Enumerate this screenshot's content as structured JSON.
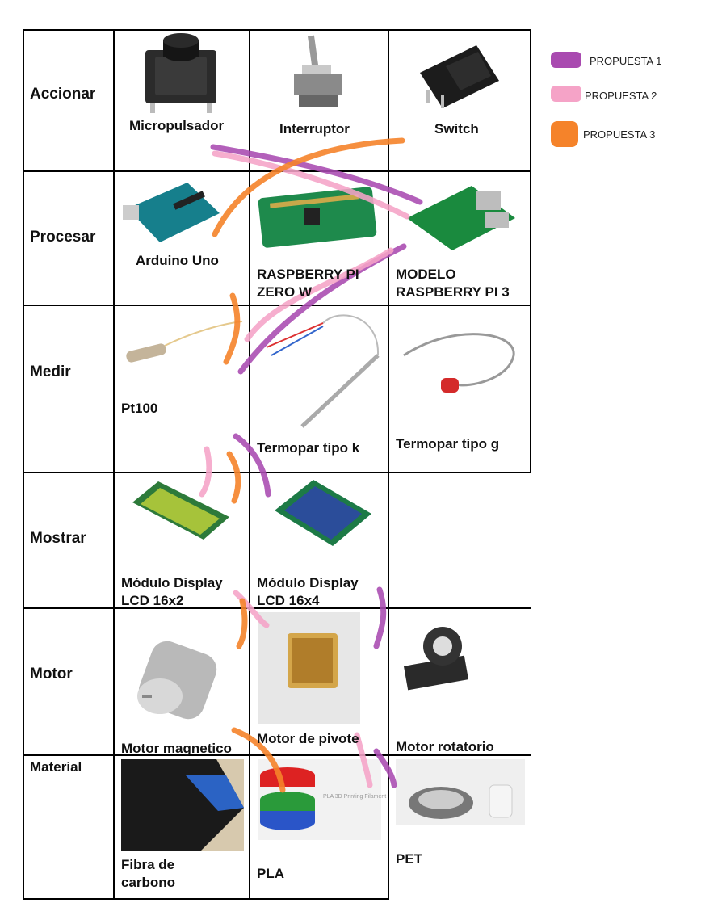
{
  "rows": [
    {
      "label": "Accionar",
      "options": [
        "Micropulsador",
        "Interruptor",
        "Switch"
      ]
    },
    {
      "label": "Procesar",
      "options": [
        "Arduino Uno",
        "RASPBERRY PI\nZERO W",
        "MODELO\nRASPBERRY PI 3"
      ]
    },
    {
      "label": "Medir",
      "options": [
        "Pt100",
        "Termopar tipo k",
        "Termopar tipo g"
      ]
    },
    {
      "label": "Mostrar",
      "options": [
        "Módulo Display\nLCD 16x2",
        "Módulo Display\nLCD 16x4",
        ""
      ]
    },
    {
      "label": "Motor",
      "options": [
        "Motor magnetico",
        "Motor de pivote",
        "Motor rotatorio"
      ]
    },
    {
      "label": "Material",
      "options": [
        "Fibra de\ncarbono",
        "PLA",
        "PET"
      ]
    }
  ],
  "legend": [
    {
      "label": "PROPUESTA 1",
      "color": "#a94ab0"
    },
    {
      "label": "PROPUESTA 2",
      "color": "#f5a3c7"
    },
    {
      "label": "PROPUESTA 3",
      "color": "#f5832a"
    }
  ],
  "images": {
    "pla_filament_text": "PLA 3D Printing Filament"
  }
}
